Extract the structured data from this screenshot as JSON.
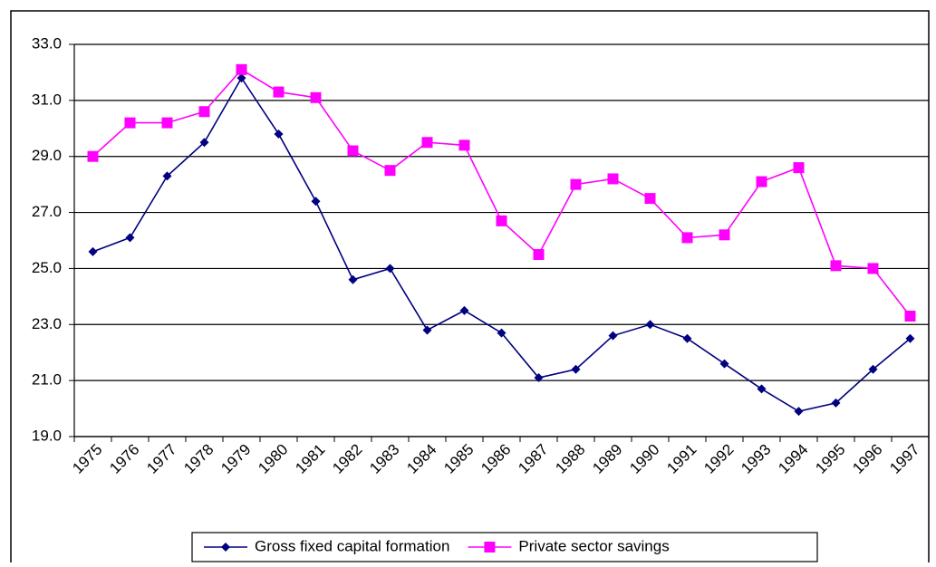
{
  "chart_data": {
    "type": "line",
    "categories": [
      "1975",
      "1976",
      "1977",
      "1978",
      "1979",
      "1980",
      "1981",
      "1982",
      "1983",
      "1984",
      "1985",
      "1986",
      "1987",
      "1988",
      "1989",
      "1990",
      "1991",
      "1992",
      "1993",
      "1994",
      "1995",
      "1996",
      "1997"
    ],
    "series": [
      {
        "name": "Gross fixed capital formation",
        "color": "#000080",
        "marker": "diamond",
        "values": [
          25.6,
          26.1,
          28.3,
          29.5,
          31.8,
          29.8,
          27.4,
          24.6,
          25.0,
          22.8,
          23.5,
          22.7,
          21.1,
          21.4,
          22.6,
          23.0,
          22.5,
          21.6,
          20.7,
          19.9,
          20.2,
          21.4,
          22.5
        ]
      },
      {
        "name": "Private sector savings",
        "color": "#ff00ff",
        "marker": "square",
        "values": [
          29.0,
          30.2,
          30.2,
          30.6,
          32.1,
          31.3,
          31.1,
          29.2,
          28.5,
          29.5,
          29.4,
          26.7,
          25.5,
          28.0,
          28.2,
          27.5,
          26.1,
          26.2,
          28.1,
          28.6,
          25.1,
          25.0,
          23.3
        ]
      }
    ],
    "ylim": [
      19,
      33
    ],
    "yticks": [
      {
        "value": 19,
        "label": "19.0"
      },
      {
        "value": 21,
        "label": "21.0"
      },
      {
        "value": 23,
        "label": "23.0"
      },
      {
        "value": 25,
        "label": "25.0"
      },
      {
        "value": 27,
        "label": "27.0"
      },
      {
        "value": 29,
        "label": "29.0"
      },
      {
        "value": 31,
        "label": "31.0"
      },
      {
        "value": 33,
        "label": "33.0"
      }
    ],
    "grid": true,
    "legend": "bottom"
  }
}
